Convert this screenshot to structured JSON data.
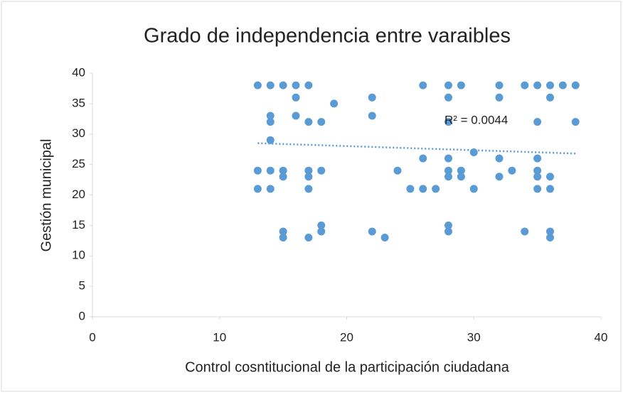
{
  "chart_data": {
    "type": "scatter",
    "title": "Grado de independencia  entre varaibles",
    "x_label": "Control cosntitucional de la participación ciudadana",
    "y_label": "Gestión municipal",
    "series": [
      {
        "color": "#5b9bd5",
        "x": [
          13,
          13,
          13,
          14,
          14,
          14,
          14,
          14,
          14,
          15,
          15,
          15,
          15,
          15,
          16,
          16,
          16,
          17,
          17,
          17,
          17,
          17,
          17,
          18,
          18,
          18,
          18,
          19,
          22,
          22,
          22,
          23,
          24,
          25,
          26,
          26,
          26,
          27,
          28,
          28,
          28,
          28,
          28,
          28,
          28,
          28,
          29,
          29,
          29,
          30,
          30,
          32,
          32,
          32,
          32,
          33,
          34,
          34,
          35,
          35,
          35,
          35,
          35,
          35,
          36,
          36,
          36,
          36,
          36,
          36,
          37,
          38,
          38
        ],
        "values": [
          38,
          24,
          21,
          38,
          33,
          32,
          29,
          24,
          21,
          38,
          24,
          23,
          14,
          13,
          38,
          36,
          33,
          38,
          32,
          24,
          23,
          21,
          13,
          32,
          24,
          15,
          14,
          35,
          36,
          33,
          14,
          13,
          24,
          21,
          38,
          26,
          21,
          21,
          38,
          36,
          32,
          26,
          24,
          23,
          15,
          14,
          38,
          24,
          23,
          27,
          21,
          38,
          36,
          26,
          23,
          24,
          38,
          14,
          38,
          32,
          26,
          24,
          23,
          21,
          38,
          36,
          23,
          21,
          14,
          13,
          38,
          38,
          32
        ]
      }
    ],
    "trendline": {
      "color": "#5b9bd5",
      "x": [
        13,
        38
      ],
      "values": [
        28.5,
        26.8
      ],
      "annotation": "R² = 0.0044"
    },
    "xlim": [
      0,
      40
    ],
    "xticks": [
      0,
      10,
      20,
      30,
      40
    ],
    "ylim": [
      0,
      40
    ],
    "yticks": [
      0,
      5,
      10,
      15,
      20,
      25,
      30,
      35,
      40
    ],
    "grid": false
  }
}
